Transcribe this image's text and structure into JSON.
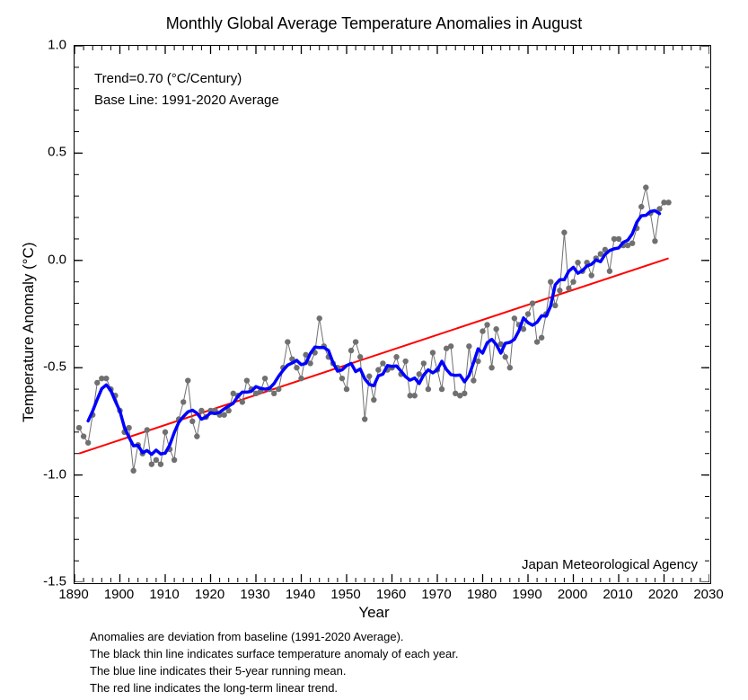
{
  "title": "Monthly Global Average Temperature Anomalies in August",
  "xlabel": "Year",
  "ylabel": "Temperature Anomaly (°C)",
  "annot1": "Trend=0.70 (°C/Century)",
  "annot2": "Base Line: 1991-2020 Average",
  "agency": "Japan Meteorological Agency",
  "caption": {
    "l1": "Anomalies are deviation from baseline (1991-2020 Average).",
    "l2": "The black thin line indicates surface temperature anomaly of each year.",
    "l3": "The blue line indicates their 5-year running mean.",
    "l4": "The red line indicates the long-term linear trend."
  },
  "chart": {
    "type": "line+scatter",
    "xlim": [
      1890,
      2030
    ],
    "ylim": [
      -1.5,
      1.0
    ],
    "xtick_start": 1890,
    "xtick_end": 2030,
    "xtick_step": 10,
    "ytick_start": -1.5,
    "ytick_end": 1.0,
    "ytick_step": 0.5,
    "x_minor_step": 2,
    "y_minor_step": 0.1,
    "background_color": "#ffffff",
    "axis_color": "#000000",
    "tick_fontsize": 15,
    "label_fontsize": 17,
    "title_fontsize": 18,
    "marker": {
      "shape": "circle",
      "radius": 3.2,
      "fill": "#707070",
      "line_color": "#707070",
      "line_width": 1
    },
    "smooth_line": {
      "color": "#0000ff",
      "width": 3.5
    },
    "trend_line": {
      "color": "#ff0000",
      "width": 2,
      "start_year": 1891,
      "end_year": 2021,
      "start_val": -0.9,
      "end_val": 0.01
    },
    "years": [
      1891,
      1892,
      1893,
      1894,
      1895,
      1896,
      1897,
      1898,
      1899,
      1900,
      1901,
      1902,
      1903,
      1904,
      1905,
      1906,
      1907,
      1908,
      1909,
      1910,
      1911,
      1912,
      1913,
      1914,
      1915,
      1916,
      1917,
      1918,
      1919,
      1920,
      1921,
      1922,
      1923,
      1924,
      1925,
      1926,
      1927,
      1928,
      1929,
      1930,
      1931,
      1932,
      1933,
      1934,
      1935,
      1936,
      1937,
      1938,
      1939,
      1940,
      1941,
      1942,
      1943,
      1944,
      1945,
      1946,
      1947,
      1948,
      1949,
      1950,
      1951,
      1952,
      1953,
      1954,
      1955,
      1956,
      1957,
      1958,
      1959,
      1960,
      1961,
      1962,
      1963,
      1964,
      1965,
      1966,
      1967,
      1968,
      1969,
      1970,
      1971,
      1972,
      1973,
      1974,
      1975,
      1976,
      1977,
      1978,
      1979,
      1980,
      1981,
      1982,
      1983,
      1984,
      1985,
      1986,
      1987,
      1988,
      1989,
      1990,
      1991,
      1992,
      1993,
      1994,
      1995,
      1996,
      1997,
      1998,
      1999,
      2000,
      2001,
      2002,
      2003,
      2004,
      2005,
      2006,
      2007,
      2008,
      2009,
      2010,
      2011,
      2012,
      2013,
      2014,
      2015,
      2016,
      2017,
      2018,
      2019,
      2020,
      2021
    ],
    "values": [
      -0.78,
      -0.82,
      -0.85,
      -0.72,
      -0.57,
      -0.55,
      -0.55,
      -0.6,
      -0.63,
      -0.7,
      -0.8,
      -0.78,
      -0.98,
      -0.86,
      -0.9,
      -0.79,
      -0.95,
      -0.93,
      -0.95,
      -0.8,
      -0.88,
      -0.93,
      -0.74,
      -0.66,
      -0.56,
      -0.75,
      -0.82,
      -0.7,
      -0.73,
      -0.7,
      -0.7,
      -0.72,
      -0.72,
      -0.7,
      -0.62,
      -0.63,
      -0.66,
      -0.56,
      -0.6,
      -0.62,
      -0.61,
      -0.55,
      -0.6,
      -0.62,
      -0.6,
      -0.5,
      -0.38,
      -0.46,
      -0.5,
      -0.55,
      -0.44,
      -0.48,
      -0.43,
      -0.27,
      -0.4,
      -0.45,
      -0.48,
      -0.5,
      -0.55,
      -0.6,
      -0.42,
      -0.38,
      -0.45,
      -0.74,
      -0.54,
      -0.65,
      -0.51,
      -0.48,
      -0.51,
      -0.5,
      -0.45,
      -0.53,
      -0.47,
      -0.63,
      -0.63,
      -0.53,
      -0.48,
      -0.6,
      -0.43,
      -0.51,
      -0.6,
      -0.41,
      -0.4,
      -0.62,
      -0.63,
      -0.62,
      -0.4,
      -0.56,
      -0.47,
      -0.33,
      -0.3,
      -0.5,
      -0.32,
      -0.39,
      -0.45,
      -0.5,
      -0.27,
      -0.3,
      -0.32,
      -0.25,
      -0.2,
      -0.38,
      -0.36,
      -0.25,
      -0.1,
      -0.21,
      -0.14,
      0.13,
      -0.13,
      -0.1,
      -0.01,
      -0.05,
      -0.01,
      -0.07,
      0.01,
      0.03,
      0.05,
      -0.05,
      0.1,
      0.1,
      0.07,
      0.07,
      0.08,
      0.15,
      0.25,
      0.34,
      0.22,
      0.09,
      0.24,
      0.27,
      0.27
    ]
  }
}
